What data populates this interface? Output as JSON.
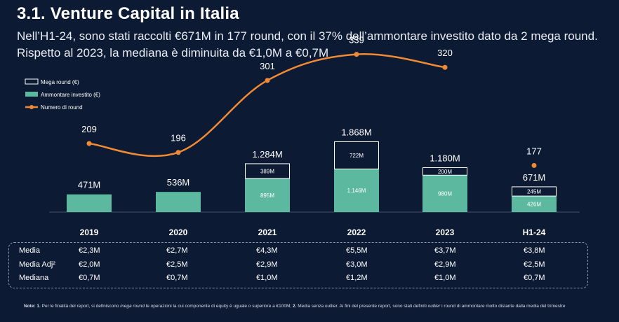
{
  "page": {
    "title": "3.1. Venture Capital in Italia",
    "subtitle": "Nell’H1-24, sono stati raccolti €671M in 177 round, con il 37% dell’ammontare investito dato da 2 mega round. Rispetto al 2023, la mediana è diminuita da €1,0M a €0,7M"
  },
  "colors": {
    "background": "#0c1a33",
    "ammontare": "#5cb89f",
    "mega": "#ffffff",
    "line": "#f08a34"
  },
  "chart_data": {
    "type": "bar",
    "categories": [
      "2019",
      "2020",
      "2021",
      "2022",
      "2023",
      "H1-24"
    ],
    "series": [
      {
        "name": "Ammontare investito (€)",
        "values": [
          471,
          536,
          895,
          1146,
          980,
          426
        ],
        "labels": [
          "471M",
          "536M",
          "895M",
          "1.146M",
          "980M",
          "426M"
        ]
      },
      {
        "name": "Mega round (€)",
        "values": [
          0,
          0,
          389,
          722,
          200,
          245
        ],
        "labels": [
          "",
          "",
          "389M",
          "722M",
          "200M",
          "245M"
        ]
      },
      {
        "name": "Numero di round",
        "type": "line",
        "values": [
          209,
          196,
          301,
          339,
          320,
          177
        ],
        "labels": [
          "209",
          "196",
          "301",
          "339",
          "320",
          "177"
        ]
      }
    ],
    "totals": [
      "471M",
      "536M",
      "1.284M",
      "1.868M",
      "1.180M",
      "671M"
    ],
    "total_values": [
      471,
      536,
      1284,
      1868,
      1180,
      671
    ],
    "legend": [
      "Mega round (€)",
      "Ammontare investito (€)",
      "Numero di round"
    ],
    "legend_position": "top-left",
    "grid": false
  },
  "stats": {
    "rows": [
      {
        "label": "Media",
        "values": [
          "€2,3M",
          "€2,7M",
          "€4,3M",
          "€5,5M",
          "€3,7M",
          "€3,8M"
        ]
      },
      {
        "label": "Media Adj²",
        "values": [
          "€2,0M",
          "€2,5M",
          "€2,9M",
          "€3,0M",
          "€2,9M",
          "€2,5M"
        ]
      },
      {
        "label": "Mediana",
        "values": [
          "€0,7M",
          "€0,7M",
          "€1,0M",
          "€1,2M",
          "€1,0M",
          "€0,7M"
        ]
      }
    ]
  },
  "note": {
    "prefix": "Note: 1.",
    "text1": " Per le finalità del report, si definiscono ",
    "italic1": "mega round",
    "text2": " le operazioni la cui componente di equity è uguale o superiore a €100M; ",
    "bold2": "2.",
    "text3": " Media senza outlier. Ai fini del presente report, sono stati definiti ",
    "italic2": "outlier",
    "text4": " i round di ammontare molto distante dalla media del trimestre"
  }
}
